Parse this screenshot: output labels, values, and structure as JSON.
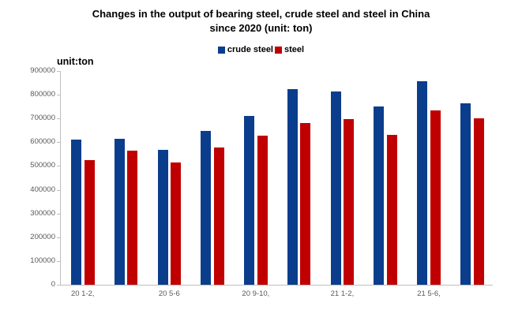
{
  "title": {
    "line1": "Changes in the output of bearing steel, crude steel and steel in China",
    "line2": "since 2020 (unit: ton)"
  },
  "unit_label": "unit:ton",
  "legend": {
    "items": [
      {
        "label": "crude steel",
        "color": "#0b3d8d"
      },
      {
        "label": "steel",
        "color": "#c00000"
      }
    ]
  },
  "chart_data": {
    "type": "bar",
    "title": "Changes in the output of bearing steel, crude steel and steel in China since 2020 (unit: ton)",
    "unit": "ton",
    "ylim": [
      0,
      900000
    ],
    "y_ticks": [
      0,
      100000,
      200000,
      300000,
      400000,
      500000,
      600000,
      700000,
      800000,
      900000
    ],
    "grid": false,
    "legend_position": "top-center",
    "axis_color": "#bfbfbf",
    "tick_text_color": "#595959",
    "x_tick_labels": [
      {
        "pair_index": 0,
        "label": "20 1-2,"
      },
      {
        "pair_index": 2,
        "label": "20 5-6"
      },
      {
        "pair_index": 4,
        "label": "20 9-10,"
      },
      {
        "pair_index": 6,
        "label": "21 1-2,"
      },
      {
        "pair_index": 8,
        "label": "21 5-6,"
      }
    ],
    "series": [
      {
        "name": "crude steel",
        "color": "#0b3d8d",
        "values": [
          610000,
          615000,
          568000,
          648000,
          710000,
          822000,
          813000,
          750000,
          858000,
          763000
        ]
      },
      {
        "name": "steel",
        "color": "#c00000",
        "values": [
          525000,
          565000,
          515000,
          578000,
          628000,
          680000,
          697000,
          630000,
          733000,
          700000
        ]
      }
    ]
  }
}
